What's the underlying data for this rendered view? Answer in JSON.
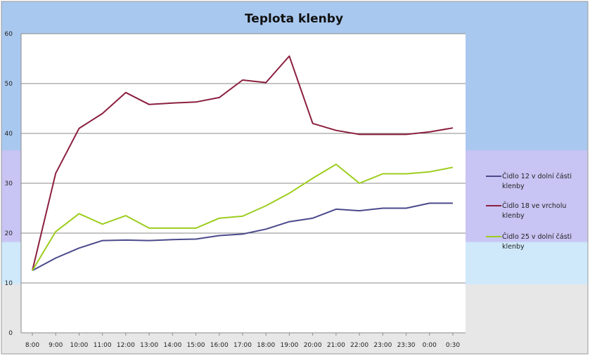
{
  "chart_data": {
    "type": "line",
    "title": "Teplota klenby",
    "xlabel": "",
    "ylabel": "",
    "ylim": [
      0,
      60
    ],
    "yticks": [
      0,
      10,
      20,
      30,
      40,
      50,
      60
    ],
    "grid": true,
    "legend_position": "right",
    "categories": [
      "8:00",
      "9:00",
      "10:00",
      "11:00",
      "12:00",
      "13:00",
      "14:00",
      "15:00",
      "16:00",
      "17:00",
      "18:00",
      "19:00",
      "20:00",
      "21:00",
      "22:00",
      "23:00",
      "23:30",
      "0:00",
      "0:30"
    ],
    "series": [
      {
        "name": "Čidlo 12 v dolní části klenby",
        "color": "#4a4a8c",
        "values": [
          12.5,
          15.0,
          17.0,
          18.5,
          18.6,
          18.5,
          18.7,
          18.8,
          19.5,
          19.8,
          20.8,
          22.3,
          23.0,
          24.8,
          24.5,
          25.0,
          25.0,
          26.0,
          26.0
        ]
      },
      {
        "name": "Čidlo 18 ve vrcholu klenby",
        "color": "#8b1f3f",
        "values": [
          12.5,
          32.0,
          41.0,
          44.0,
          48.2,
          45.8,
          46.1,
          46.3,
          47.2,
          50.7,
          50.2,
          55.5,
          42.0,
          40.6,
          39.8,
          39.8,
          39.8,
          40.3,
          41.1
        ]
      },
      {
        "name": "Čidlo 25 v dolní části klenby",
        "color": "#9ccd1d",
        "values": [
          12.5,
          20.3,
          23.9,
          21.8,
          23.5,
          21.0,
          21.0,
          21.0,
          23.0,
          23.4,
          25.5,
          28.0,
          31.0,
          33.8,
          30.0,
          31.9,
          31.9,
          32.3,
          33.2
        ]
      }
    ]
  }
}
